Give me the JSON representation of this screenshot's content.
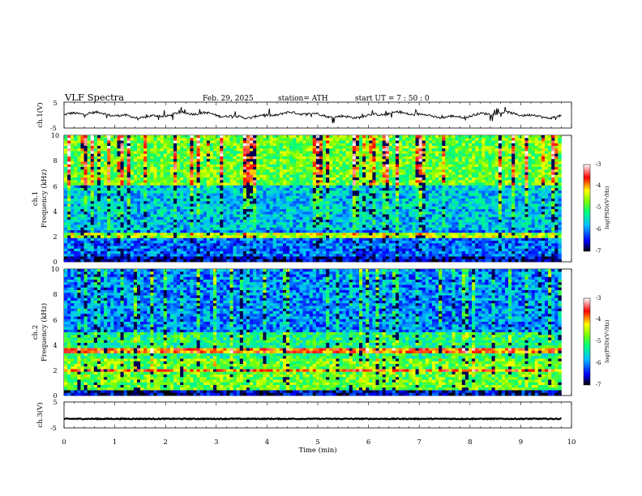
{
  "header": {
    "title": "VLF  Spectra",
    "date": "Feb. 29, 2025",
    "station": "station= ATH",
    "start": "start  UT  =   7  : 50 : 0"
  },
  "chart_data": [
    {
      "type": "line",
      "id": "ch1-waveform",
      "ylabel": "ch.1(V)",
      "ylim": [
        -5,
        5
      ],
      "yticks": [
        "5",
        "-5"
      ],
      "xlim": [
        0,
        10
      ],
      "trace_level": 0.0,
      "color": "#000000"
    },
    {
      "type": "heatmap",
      "id": "ch1-spectrogram",
      "ylabel_top": "ch.1",
      "ylabel": "Frequency  (kHz)",
      "ylim": [
        0,
        10
      ],
      "yticks": [
        "0",
        "2",
        "4",
        "6",
        "8",
        "10"
      ],
      "xlim": [
        0,
        10
      ],
      "data_end_min": 9.8,
      "colorbar": {
        "label": "log(PSD)(V²/Hz)",
        "range": [
          -7,
          -3
        ],
        "ticks": [
          "-3",
          "-4",
          "-5",
          "-6",
          "-7"
        ]
      }
    },
    {
      "type": "heatmap",
      "id": "ch2-spectrogram",
      "ylabel_top": "ch.2",
      "ylabel": "Frequency  (kHz)",
      "ylim": [
        0,
        10
      ],
      "yticks": [
        "0",
        "2",
        "4",
        "6",
        "8",
        "10"
      ],
      "xlim": [
        0,
        10
      ],
      "data_end_min": 9.8,
      "colorbar": {
        "label": "log(PSD)(V²/Hz)",
        "range": [
          -7,
          -3
        ],
        "ticks": [
          "-3",
          "-4",
          "-5",
          "-6",
          "-7"
        ]
      }
    },
    {
      "type": "line",
      "id": "ch3-waveform",
      "ylabel": "ch.3(V)",
      "ylim": [
        -5,
        5
      ],
      "yticks": [
        "5",
        "-5"
      ],
      "xlim": [
        0,
        10
      ],
      "trace_level": -1.5,
      "color": "#000000"
    }
  ],
  "xaxis": {
    "label": "Time  (min)",
    "ticks": [
      "0",
      "1",
      "2",
      "3",
      "4",
      "5",
      "6",
      "7",
      "8",
      "9",
      "10"
    ]
  }
}
